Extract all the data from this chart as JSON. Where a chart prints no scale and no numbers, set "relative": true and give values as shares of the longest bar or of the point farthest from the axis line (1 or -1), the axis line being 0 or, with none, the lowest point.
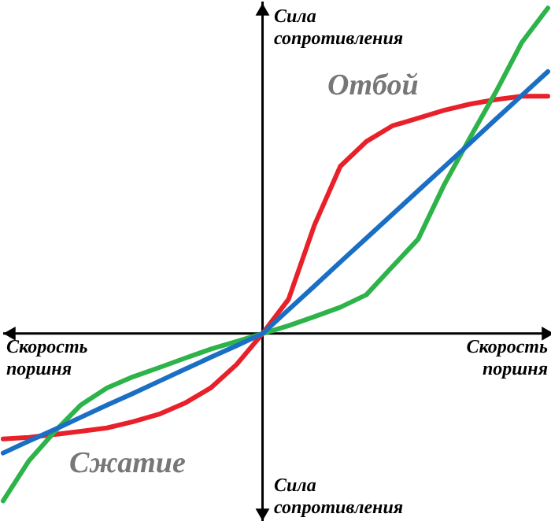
{
  "chart_data": {
    "type": "line",
    "relative": true,
    "xlabel": "Скорость\nпоршня",
    "ylabel": "Сила\nсопротивления",
    "annotations": [
      "Отбой",
      "Сжатие"
    ],
    "categories": [
      null,
      null,
      null,
      null,
      null,
      null,
      null,
      null,
      null,
      null,
      null,
      null,
      null,
      null,
      null,
      null,
      null,
      null,
      null,
      null,
      null,
      null
    ],
    "series": [
      {
        "color": "#e8202a",
        "values": [
          -0.324,
          -0.319,
          -0.31,
          -0.3,
          -0.29,
          -0.271,
          -0.248,
          -0.214,
          -0.167,
          -0.095,
          0,
          0.105,
          0.333,
          0.514,
          0.59,
          0.638,
          0.662,
          0.686,
          0.705,
          0.719,
          0.729,
          0.729
        ]
      },
      {
        "color": "#2db34a",
        "values": [
          -0.514,
          -0.39,
          -0.3,
          -0.219,
          -0.167,
          -0.133,
          -0.105,
          -0.076,
          -0.048,
          -0.024,
          0,
          0.024,
          0.052,
          0.081,
          0.119,
          0.205,
          0.29,
          0.457,
          0.602,
          0.743,
          0.895,
          1
        ]
      },
      {
        "color": "#1a6fc4",
        "values": [
          -0.367,
          -0.33,
          -0.294,
          -0.257,
          -0.22,
          -0.184,
          -0.147,
          -0.11,
          -0.073,
          -0.037,
          0,
          0.073,
          0.146,
          0.22,
          0.293,
          0.366,
          0.439,
          0.512,
          0.585,
          0.659,
          0.732,
          0.805
        ]
      }
    ]
  }
}
